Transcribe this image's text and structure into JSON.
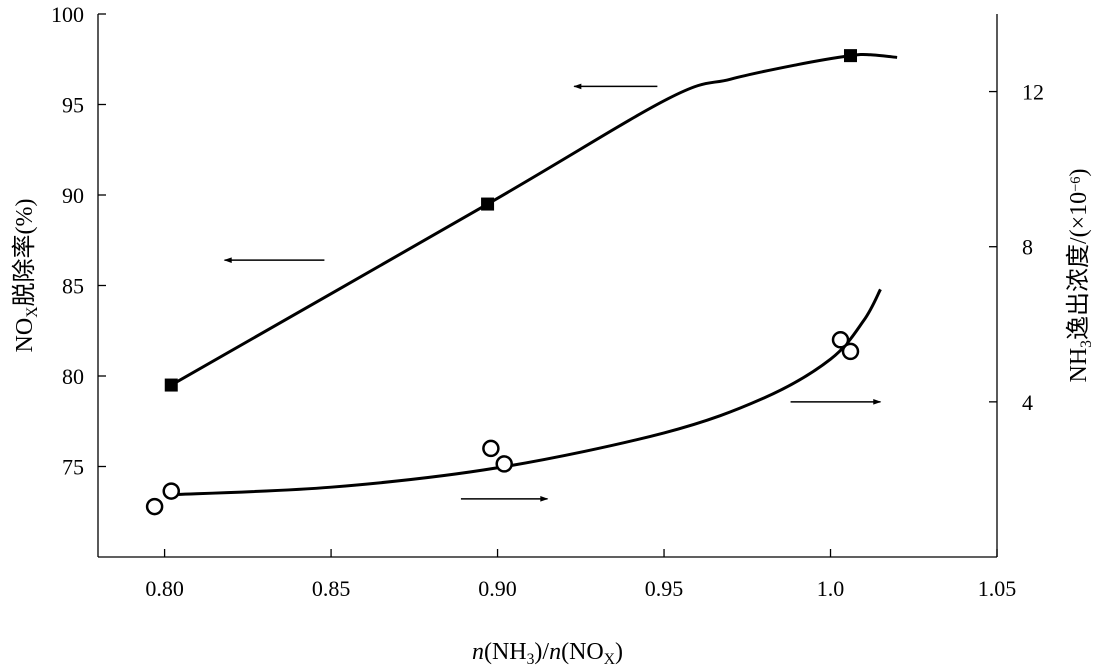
{
  "chart_data": {
    "type": "line",
    "x": {
      "label_parts": [
        {
          "text": "n",
          "italic": true
        },
        {
          "text": "(NH"
        },
        {
          "text": "3",
          "sub": true
        },
        {
          "text": ")/"
        },
        {
          "text": "n",
          "italic": true
        },
        {
          "text": "(NO"
        },
        {
          "text": "X",
          "sub": true
        },
        {
          "text": ")"
        }
      ],
      "range": [
        0.78,
        1.05
      ],
      "ticks": [
        0.8,
        0.85,
        0.9,
        0.95,
        1.05
      ],
      "tick_labels": [
        "0.80",
        "0.85",
        "0.90",
        "0.95",
        "1.05"
      ],
      "extra_tick": {
        "value": 1.0,
        "label": "1.0"
      }
    },
    "y_left": {
      "label_parts": [
        {
          "text": "NO"
        },
        {
          "text": "X",
          "sub": true
        },
        {
          "text": "脱除率(%)"
        }
      ],
      "range": [
        70,
        100
      ],
      "ticks": [
        75,
        80,
        85,
        90,
        95,
        100
      ],
      "tick_labels": [
        "75",
        "80",
        "85",
        "90",
        "95",
        "100"
      ]
    },
    "y_right": {
      "label_parts": [
        {
          "text": "NH"
        },
        {
          "text": "3",
          "sub": true
        },
        {
          "text": "逸出浓度/(×10"
        },
        {
          "text": "−6",
          "sup": true
        },
        {
          "text": ")"
        }
      ],
      "range": [
        0,
        14
      ],
      "ticks": [
        4,
        8,
        12
      ],
      "tick_labels": [
        "4",
        "8",
        "12"
      ]
    },
    "series": [
      {
        "axis": "left",
        "marker": "square",
        "points": [
          [
            0.802,
            79.5
          ],
          [
            0.897,
            89.5
          ],
          [
            1.006,
            97.7
          ]
        ],
        "curve": [
          [
            0.802,
            79.5
          ],
          [
            0.897,
            89.5
          ],
          [
            0.951,
            95.3
          ],
          [
            0.97,
            96.4
          ],
          [
            0.99,
            97.2
          ],
          [
            1.006,
            97.7
          ],
          [
            1.012,
            97.75
          ],
          [
            1.02,
            97.6
          ]
        ]
      },
      {
        "axis": "right",
        "marker": "circle",
        "points": [
          [
            0.797,
            1.3
          ],
          [
            0.802,
            1.7
          ],
          [
            0.898,
            2.8
          ],
          [
            0.902,
            2.4
          ],
          [
            1.003,
            5.6
          ],
          [
            1.006,
            5.3
          ]
        ],
        "curve": [
          [
            0.8,
            1.6
          ],
          [
            0.85,
            1.8
          ],
          [
            0.9,
            2.3
          ],
          [
            0.95,
            3.2
          ],
          [
            0.98,
            4.1
          ],
          [
            1.0,
            5.1
          ],
          [
            1.01,
            6.1
          ],
          [
            1.015,
            6.9
          ]
        ]
      }
    ],
    "annotations": [
      {
        "type": "arrow",
        "direction": "left",
        "axis": "left",
        "x_from": 0.948,
        "x_to": 0.923,
        "y": 96.0
      },
      {
        "type": "arrow",
        "direction": "left",
        "axis": "left",
        "x_from": 0.848,
        "x_to": 0.818,
        "y": 86.4
      },
      {
        "type": "arrow",
        "direction": "right",
        "axis": "right",
        "x_from": 0.988,
        "x_to": 1.015,
        "y": 4.0
      },
      {
        "type": "arrow",
        "direction": "right",
        "axis": "right",
        "x_from": 0.889,
        "x_to": 0.915,
        "y": 1.5
      }
    ],
    "grid": false,
    "legend": "none"
  }
}
